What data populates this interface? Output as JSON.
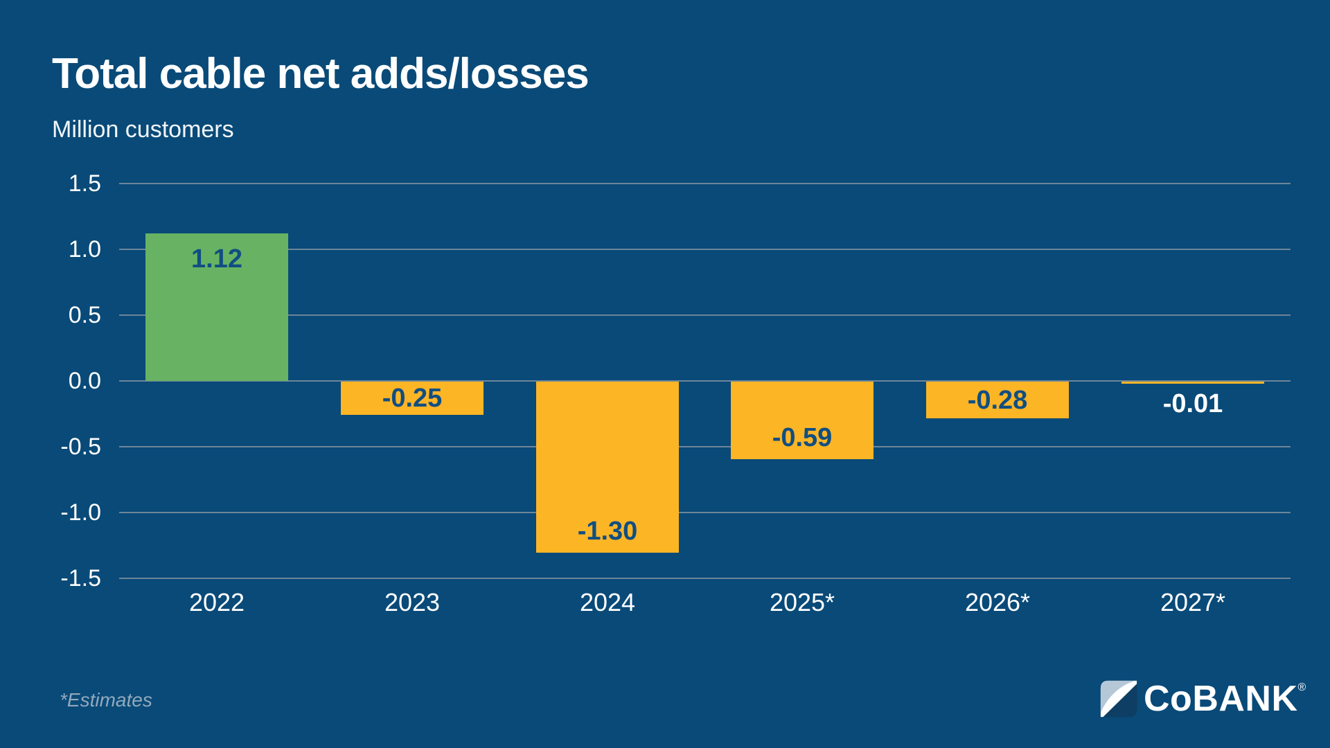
{
  "page": {
    "background": "#094a78"
  },
  "header": {
    "title": "Total cable net adds/losses",
    "subtitle": "Million customers"
  },
  "chart_data": {
    "type": "bar",
    "title": "Total cable net adds/losses",
    "ylabel": "Million customers",
    "xlabel": "",
    "categories": [
      "2022",
      "2023",
      "2024",
      "2025*",
      "2026*",
      "2027*"
    ],
    "values": [
      1.12,
      -0.25,
      -1.3,
      -0.59,
      -0.28,
      -0.01
    ],
    "value_labels": [
      "1.12",
      "-0.25",
      "-1.30",
      "-0.59",
      "-0.28",
      "-0.01"
    ],
    "ylim": [
      -1.5,
      1.5
    ],
    "yticks": [
      "1.5",
      "1.0",
      "0.5",
      "0.0",
      "-0.5",
      "-1.0",
      "-1.5"
    ],
    "grid": true,
    "legend": "none",
    "colors": {
      "positive_bar": "#68b363",
      "negative_bar": "#fcb525",
      "label_on_bar": "#114e82",
      "label_on_background": "#ffffff",
      "gridline": "#6e8599",
      "axis_text": "#ffffff"
    }
  },
  "footer": {
    "note": "*Estimates",
    "logo": {
      "wordmark": "CoBANK",
      "registered": "®"
    }
  }
}
